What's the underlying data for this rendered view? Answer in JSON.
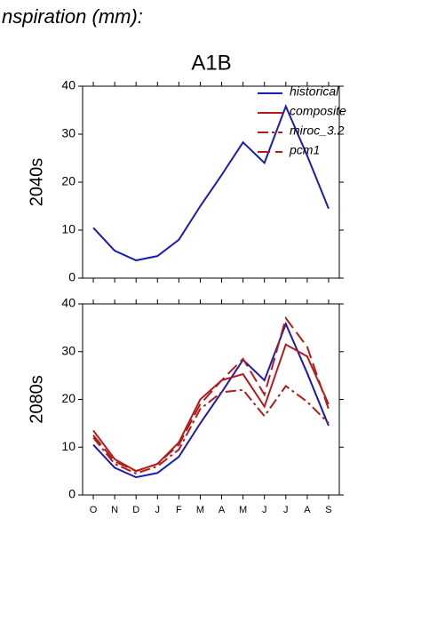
{
  "header": "nspiration (mm):",
  "title": "A1B",
  "chart_data": [
    {
      "type": "line",
      "ylabel": "2040s",
      "ylim": [
        0,
        40
      ],
      "yticks": [
        0,
        10,
        20,
        30,
        40
      ],
      "legend": "top-right",
      "series": [
        {
          "color": "#1c1cb0",
          "dash": "solid",
          "values": [
            10.5,
            5.7,
            3.7,
            4.6,
            8,
            15,
            21.5,
            28.3,
            24,
            35.8,
            25.5,
            14.5
          ]
        }
      ]
    },
    {
      "type": "line",
      "ylabel": "2080s",
      "ylim": [
        0,
        40
      ],
      "yticks": [
        0,
        10,
        20,
        30,
        40
      ],
      "categories": [
        "O",
        "N",
        "D",
        "J",
        "F",
        "M",
        "A",
        "M",
        "J",
        "J",
        "A",
        "S"
      ],
      "series": [
        {
          "name": "historical",
          "color": "#1c1cb0",
          "dash": "solid",
          "values": [
            10.5,
            5.7,
            3.7,
            4.6,
            8,
            15,
            21.5,
            28.3,
            24,
            35.8,
            25.5,
            14.5
          ]
        },
        {
          "name": "composite",
          "color": "#b21c1c",
          "dash": "solid",
          "values": [
            13.5,
            7.5,
            5,
            6.5,
            11,
            20,
            24,
            25.3,
            18.5,
            31.5,
            29,
            19
          ]
        },
        {
          "name": "miroc_3.2",
          "color": "#b21c1c",
          "dash": "dashdot",
          "values": [
            12,
            6.5,
            4.5,
            6,
            9.5,
            18,
            21.5,
            22,
            16.5,
            22.8,
            19.5,
            15
          ]
        },
        {
          "name": "pcm1",
          "color": "#b21c1c",
          "dash": "dashed",
          "values": [
            12.5,
            7,
            5,
            6.5,
            10.5,
            19,
            24,
            28.5,
            21,
            37,
            31,
            18
          ]
        }
      ]
    }
  ]
}
